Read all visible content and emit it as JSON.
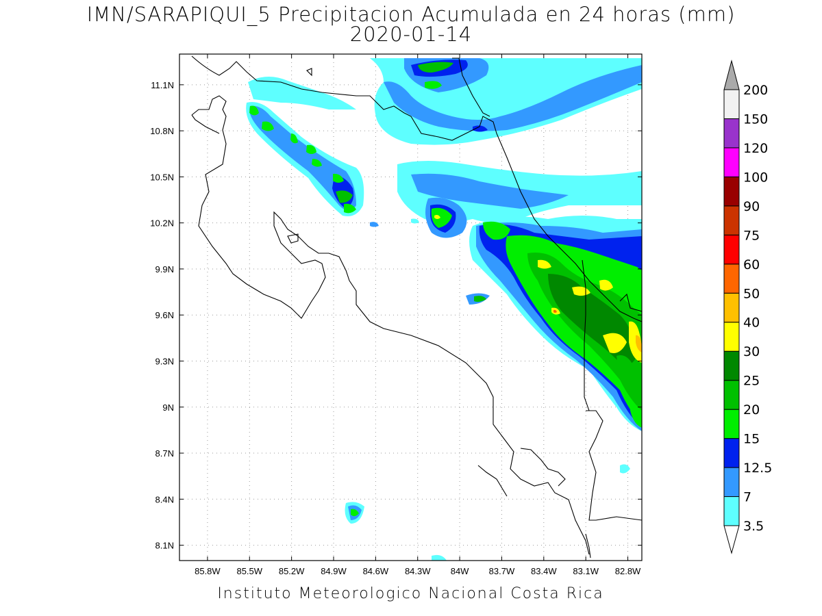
{
  "title": "IMN/SARAPIQUI_5 Precipitacion Acumulada en 24 horas (mm)",
  "date": "2020-01-14",
  "footer": "Instituto Meteorologico Nacional Costa Rica",
  "map": {
    "lon_range": [
      -86.0,
      -82.7
    ],
    "lat_range": [
      8.0,
      11.3
    ],
    "lon_ticks": [
      "85.8W",
      "85.5W",
      "85.2W",
      "84.9W",
      "84.6W",
      "84.3W",
      "84W",
      "83.7W",
      "83.4W",
      "83.1W",
      "82.8W"
    ],
    "lon_values": [
      -85.8,
      -85.5,
      -85.2,
      -84.9,
      -84.6,
      -84.3,
      -84.0,
      -83.7,
      -83.4,
      -83.1,
      -82.8
    ],
    "lat_ticks": [
      "11.1N",
      "10.8N",
      "10.5N",
      "10.2N",
      "9.9N",
      "9.6N",
      "9.3N",
      "9N",
      "8.7N",
      "8.4N",
      "8.1N"
    ],
    "lat_values": [
      11.1,
      10.8,
      10.5,
      10.2,
      9.9,
      9.6,
      9.3,
      9.0,
      8.7,
      8.4,
      8.1
    ],
    "grid": "dotted"
  },
  "colorbar": {
    "levels": [
      "3.5",
      "7",
      "12.5",
      "15",
      "20",
      "25",
      "30",
      "40",
      "50",
      "60",
      "75",
      "90",
      "100",
      "120",
      "150",
      "200"
    ],
    "colors": [
      "#5effff",
      "#3399ff",
      "#0022ee",
      "#00ee00",
      "#00c000",
      "#008800",
      "#ffff00",
      "#ffc000",
      "#ff6600",
      "#ff0000",
      "#cc3300",
      "#990000",
      "#ff00ff",
      "#9933cc",
      "#f2f2f2",
      "#aaaaaa"
    ]
  }
}
